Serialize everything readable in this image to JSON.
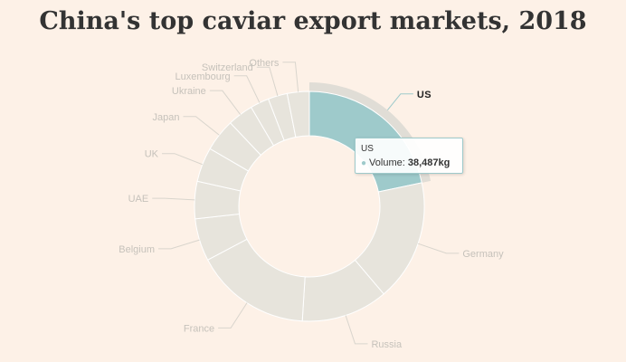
{
  "title": "China's top caviar export markets, 2018",
  "colors": {
    "background": "#fdf1e7",
    "slice": "#e7e4dc",
    "slice_border": "#ffffff",
    "highlight": "#9ecacb",
    "halo": "#e0ddd6",
    "label_muted": "#c6c2bb"
  },
  "tooltip": {
    "name": "US",
    "series_label": "Volume",
    "value_text": "38,487kg"
  },
  "chart_data": {
    "type": "pie",
    "variant": "donut",
    "highlighted": "US",
    "categories": [
      "US",
      "Germany",
      "Russia",
      "France",
      "Belgium",
      "UAE",
      "UK",
      "Japan",
      "Ukraine",
      "Luxembourg",
      "Switzerland",
      "Others"
    ],
    "values": [
      38487,
      30300,
      21600,
      28900,
      10600,
      9300,
      8600,
      8100,
      6400,
      4700,
      4800,
      5500
    ],
    "series": [
      {
        "name": "Volume",
        "unit": "kg"
      }
    ]
  }
}
